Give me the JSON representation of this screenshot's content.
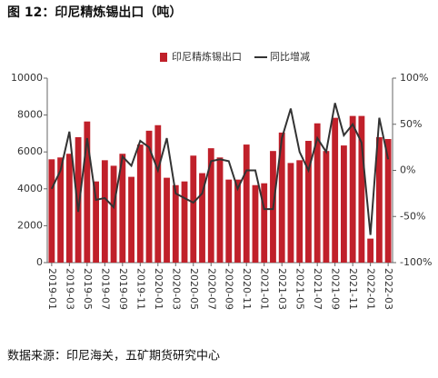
{
  "chart_data": {
    "type": "bar",
    "title": "图 12：印尼精炼锡出口（吨）",
    "source": "数据来源：印尼海关，五矿期货研究中心",
    "categories": [
      "2019-01",
      null,
      "2019-03",
      null,
      "2019-05",
      null,
      "2019-07",
      null,
      "2019-09",
      null,
      "2019-11",
      null,
      "2020-01",
      null,
      "2020-03",
      null,
      "2020-05",
      null,
      "2020-07",
      null,
      "2020-09",
      null,
      "2020-11",
      null,
      "2021-01",
      null,
      "2021-03",
      null,
      "2021-05",
      null,
      "2021-07",
      null,
      "2021-09",
      null,
      "2021-11",
      null,
      "2022-01",
      null,
      "2022-03"
    ],
    "series": [
      {
        "name": "印尼精炼锡出口",
        "type": "bar",
        "color": "#c0202a",
        "values": [
          5600,
          5700,
          5900,
          6800,
          7650,
          4400,
          5550,
          5250,
          5900,
          4650,
          6400,
          7150,
          7450,
          4600,
          4200,
          4400,
          5800,
          4850,
          6200,
          5700,
          4500,
          4500,
          6400,
          4200,
          4300,
          6050,
          7050,
          5400,
          5550,
          6600,
          7550,
          6050,
          7850,
          6350,
          7950,
          7950,
          1300,
          6800,
          6700
        ]
      },
      {
        "name": "同比增减",
        "type": "line",
        "axis": "y2",
        "color": "#333333",
        "values": [
          -20,
          0,
          42,
          -45,
          35,
          -32,
          -30,
          -40,
          15,
          5,
          32,
          25,
          0,
          35,
          -25,
          -30,
          -35,
          -25,
          10,
          12,
          10,
          -20,
          0,
          0,
          -42,
          -42,
          35,
          67,
          20,
          0,
          35,
          20,
          73,
          38,
          50,
          30,
          -70,
          57,
          12
        ]
      }
    ],
    "ylim": [
      0,
      10000
    ],
    "yticks": [
      0,
      2000,
      4000,
      6000,
      8000,
      10000
    ],
    "y2lim": [
      -100,
      100
    ],
    "y2ticks": [
      {
        "value": -100,
        "label": "-100%"
      },
      {
        "value": -50,
        "label": "-50%"
      },
      {
        "value": 0,
        "label": "0%"
      },
      {
        "value": 50,
        "label": "50%"
      },
      {
        "value": 100,
        "label": "100%"
      }
    ],
    "legend": "top-right",
    "grid": false
  }
}
